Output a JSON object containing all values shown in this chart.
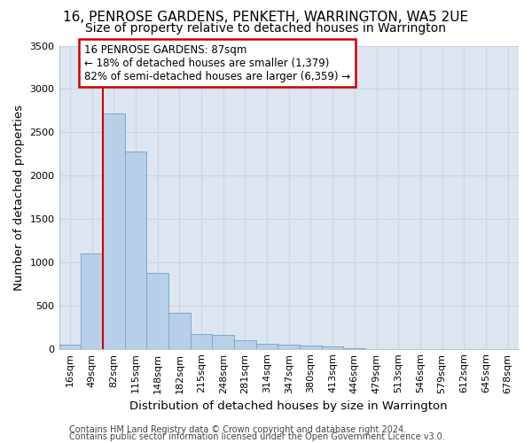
{
  "title": "16, PENROSE GARDENS, PENKETH, WARRINGTON, WA5 2UE",
  "subtitle": "Size of property relative to detached houses in Warrington",
  "xlabel": "Distribution of detached houses by size in Warrington",
  "ylabel": "Number of detached properties",
  "footer_line1": "Contains HM Land Registry data © Crown copyright and database right 2024.",
  "footer_line2": "Contains public sector information licensed under the Open Government Licence v3.0.",
  "bar_labels": [
    "16sqm",
    "49sqm",
    "82sqm",
    "115sqm",
    "148sqm",
    "182sqm",
    "215sqm",
    "248sqm",
    "281sqm",
    "314sqm",
    "347sqm",
    "380sqm",
    "413sqm",
    "446sqm",
    "479sqm",
    "513sqm",
    "546sqm",
    "579sqm",
    "612sqm",
    "645sqm",
    "678sqm"
  ],
  "bar_values": [
    50,
    1100,
    2720,
    2280,
    880,
    420,
    175,
    165,
    95,
    60,
    50,
    35,
    30,
    5,
    0,
    0,
    0,
    0,
    0,
    0,
    0
  ],
  "bar_color": "#b8cfe8",
  "bar_edge_color": "#7aaad0",
  "vline_color": "#cc0000",
  "vline_x_index": 2,
  "annotation_text": "16 PENROSE GARDENS: 87sqm\n← 18% of detached houses are smaller (1,379)\n82% of semi-detached houses are larger (6,359) →",
  "annotation_box_color": "#ffffff",
  "annotation_box_edge_color": "#cc0000",
  "ylim": [
    0,
    3500
  ],
  "yticks": [
    0,
    500,
    1000,
    1500,
    2000,
    2500,
    3000,
    3500
  ],
  "grid_color": "#c8d4e8",
  "background_color": "#dde6f0",
  "title_fontsize": 11,
  "subtitle_fontsize": 10,
  "axis_label_fontsize": 9.5,
  "tick_fontsize": 8,
  "footer_fontsize": 7
}
